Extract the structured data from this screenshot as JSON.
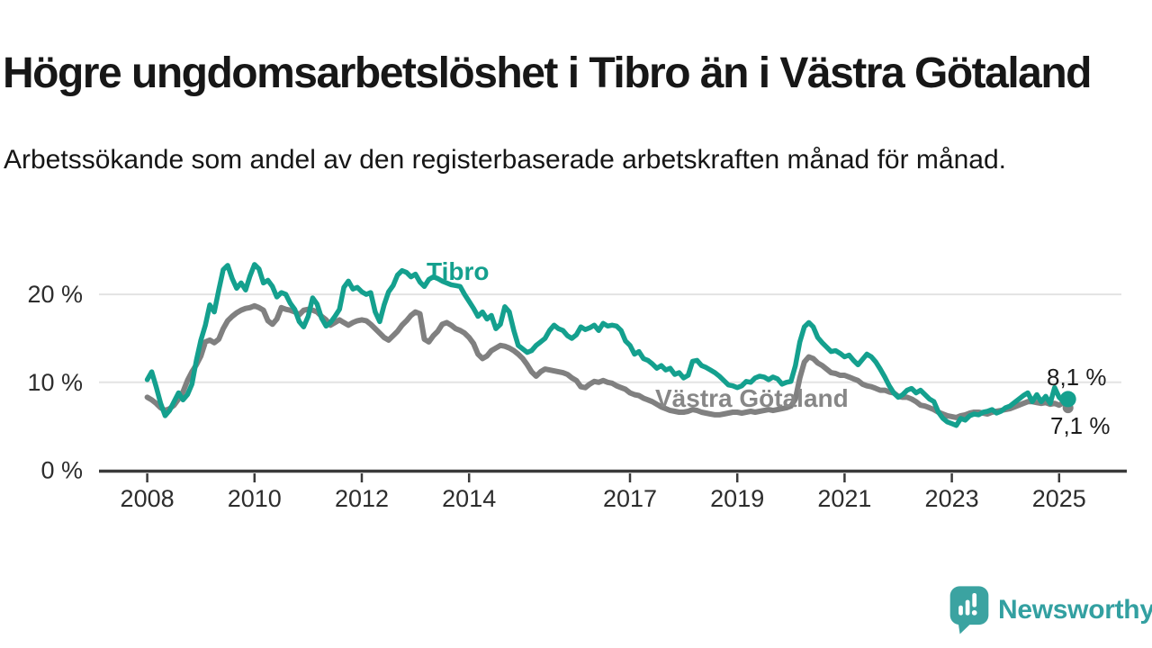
{
  "header": {
    "title": "Högre ungdomsarbetslöshet i Tibro än i Västra Götaland",
    "subtitle": "Arbetssökande som andel av den registerbaserade arbetskraften månad för månad."
  },
  "footer": {
    "brand": "Newsworthy",
    "logo_icon": "speech-bubble-bar-chart",
    "logo_color": "#3ba3a1"
  },
  "colors": {
    "tibro": "#14a08e",
    "vastra_gotaland": "#808080",
    "grid": "#e3e3e3",
    "axis": "#3a3a3a",
    "text": "#2d2d2d"
  },
  "chart_data": {
    "type": "line",
    "title": "Högre ungdomsarbetslöshet i Tibro än i Västra Götaland",
    "subtitle": "Arbetssökande som andel av den registerbaserade arbetskraften månad för månad.",
    "unit": "%",
    "x_start": 2008.0,
    "points_per_year": 12,
    "x_range": [
      2008.0,
      2025.2
    ],
    "ylim": [
      0,
      24
    ],
    "grid": "horizontal",
    "legend_position": "inline-labels",
    "x_axis": {
      "ticks": [
        2008,
        2010,
        2012,
        2014,
        2017,
        2019,
        2021,
        2023,
        2025
      ]
    },
    "y_axis": {
      "ticks": [
        {
          "value": 0,
          "label": "0 %"
        },
        {
          "value": 10,
          "label": "10 %"
        },
        {
          "value": 20,
          "label": "20 %"
        }
      ]
    },
    "series": [
      {
        "name": "Tibro",
        "label_text": "Tibro",
        "end_label": "8,1 %",
        "end_value": 8.1,
        "color": "#14a08e",
        "values": [
          10.3,
          11.2,
          9.5,
          7.6,
          6.2,
          6.8,
          7.8,
          8.8,
          8.0,
          8.6,
          9.8,
          12.5,
          14.8,
          16.5,
          18.8,
          18.0,
          20.5,
          22.8,
          23.3,
          21.8,
          20.7,
          21.3,
          20.5,
          22.1,
          23.4,
          22.9,
          21.3,
          21.6,
          20.9,
          19.7,
          20.2,
          20.0,
          19.0,
          18.3,
          16.9,
          16.3,
          17.5,
          19.6,
          18.9,
          17.3,
          16.4,
          16.8,
          17.5,
          18.3,
          20.8,
          21.5,
          20.6,
          20.8,
          20.3,
          20.0,
          20.2,
          18.0,
          16.9,
          18.8,
          20.3,
          21.0,
          22.2,
          22.7,
          22.5,
          22.0,
          22.3,
          21.4,
          20.9,
          21.7,
          22.0,
          21.8,
          21.5,
          21.3,
          21.1,
          21.0,
          20.9,
          20.0,
          19.2,
          18.4,
          17.5,
          18.0,
          17.2,
          17.6,
          16.1,
          16.6,
          18.6,
          18.0,
          15.9,
          14.2,
          13.8,
          13.4,
          13.6,
          14.2,
          14.6,
          15.0,
          15.9,
          16.5,
          16.1,
          15.9,
          15.3,
          15.0,
          15.4,
          16.3,
          16.0,
          16.2,
          16.5,
          15.9,
          16.7,
          16.4,
          16.5,
          16.4,
          15.9,
          14.7,
          14.2,
          13.2,
          13.5,
          12.7,
          12.5,
          12.1,
          11.6,
          11.9,
          11.4,
          11.6,
          10.9,
          11.1,
          10.5,
          10.8,
          12.4,
          12.5,
          11.9,
          11.7,
          11.4,
          11.1,
          10.7,
          10.2,
          9.7,
          9.6,
          9.4,
          9.6,
          10.1,
          10.0,
          10.5,
          10.7,
          10.6,
          10.3,
          10.6,
          10.4,
          9.8,
          10.0,
          10.1,
          11.9,
          14.6,
          16.3,
          16.8,
          16.3,
          15.1,
          14.5,
          14.0,
          13.5,
          13.6,
          13.3,
          12.9,
          13.1,
          12.5,
          12.0,
          12.6,
          13.2,
          12.9,
          12.3,
          11.5,
          10.6,
          9.6,
          8.8,
          8.3,
          8.6,
          9.1,
          9.3,
          8.8,
          9.1,
          8.6,
          8.1,
          7.8,
          6.6,
          5.9,
          5.5,
          5.3,
          5.1,
          5.9,
          5.7,
          6.2,
          6.4,
          6.3,
          6.6,
          6.7,
          6.9,
          6.5,
          6.7,
          7.1,
          7.3,
          7.7,
          8.1,
          8.5,
          8.8,
          7.8,
          8.6,
          7.8,
          8.4,
          7.6,
          9.4,
          8.3,
          7.8,
          8.1
        ]
      },
      {
        "name": "Västra Götaland",
        "label_text": "Västra Götaland",
        "end_label": "7,1 %",
        "end_value": 7.1,
        "color": "#808080",
        "values": [
          8.3,
          8.0,
          7.6,
          7.1,
          6.8,
          7.0,
          7.4,
          8.1,
          8.9,
          10.2,
          11.2,
          12.0,
          13.0,
          14.6,
          14.8,
          14.5,
          14.9,
          16.1,
          17.0,
          17.5,
          17.9,
          18.2,
          18.4,
          18.5,
          18.7,
          18.5,
          18.2,
          17.0,
          16.6,
          17.2,
          18.5,
          18.3,
          18.2,
          18.0,
          17.7,
          18.2,
          18.3,
          18.2,
          18.0,
          17.5,
          17.1,
          16.5,
          16.8,
          17.1,
          16.8,
          16.5,
          16.8,
          17.0,
          17.1,
          17.0,
          16.6,
          16.1,
          15.6,
          15.1,
          14.8,
          15.3,
          15.8,
          16.5,
          17.0,
          17.6,
          18.0,
          17.8,
          14.9,
          14.6,
          15.3,
          15.8,
          16.6,
          16.8,
          16.5,
          16.1,
          15.9,
          15.6,
          15.1,
          14.4,
          13.2,
          12.7,
          13.0,
          13.6,
          13.9,
          14.2,
          14.1,
          13.9,
          13.6,
          13.2,
          12.7,
          12.0,
          11.2,
          10.7,
          11.2,
          11.5,
          11.4,
          11.3,
          11.2,
          11.1,
          10.9,
          10.5,
          10.2,
          9.5,
          9.4,
          9.8,
          10.1,
          10.0,
          10.2,
          10.0,
          9.9,
          9.6,
          9.4,
          9.2,
          8.8,
          8.6,
          8.5,
          8.2,
          8.0,
          7.8,
          7.5,
          7.2,
          7.0,
          6.8,
          6.7,
          6.6,
          6.6,
          6.7,
          6.9,
          6.8,
          6.6,
          6.5,
          6.4,
          6.3,
          6.3,
          6.4,
          6.5,
          6.6,
          6.6,
          6.5,
          6.6,
          6.7,
          6.6,
          6.7,
          6.8,
          6.9,
          6.8,
          6.9,
          7.0,
          7.1,
          7.3,
          8.1,
          10.5,
          12.3,
          12.9,
          12.7,
          12.2,
          11.9,
          11.5,
          11.1,
          11.0,
          10.8,
          10.8,
          10.6,
          10.4,
          10.2,
          9.8,
          9.6,
          9.5,
          9.3,
          9.1,
          9.1,
          8.9,
          8.8,
          8.4,
          8.3,
          8.3,
          8.1,
          7.8,
          7.4,
          7.3,
          7.1,
          6.9,
          6.6,
          6.4,
          6.2,
          6.1,
          6.0,
          6.2,
          6.3,
          6.5,
          6.6,
          6.6,
          6.5,
          6.4,
          6.6,
          6.7,
          6.8,
          6.9,
          7.0,
          7.2,
          7.4,
          7.6,
          7.8,
          7.8,
          7.7,
          7.6,
          7.7,
          7.5,
          7.6,
          7.4,
          7.7,
          7.1
        ]
      }
    ]
  }
}
